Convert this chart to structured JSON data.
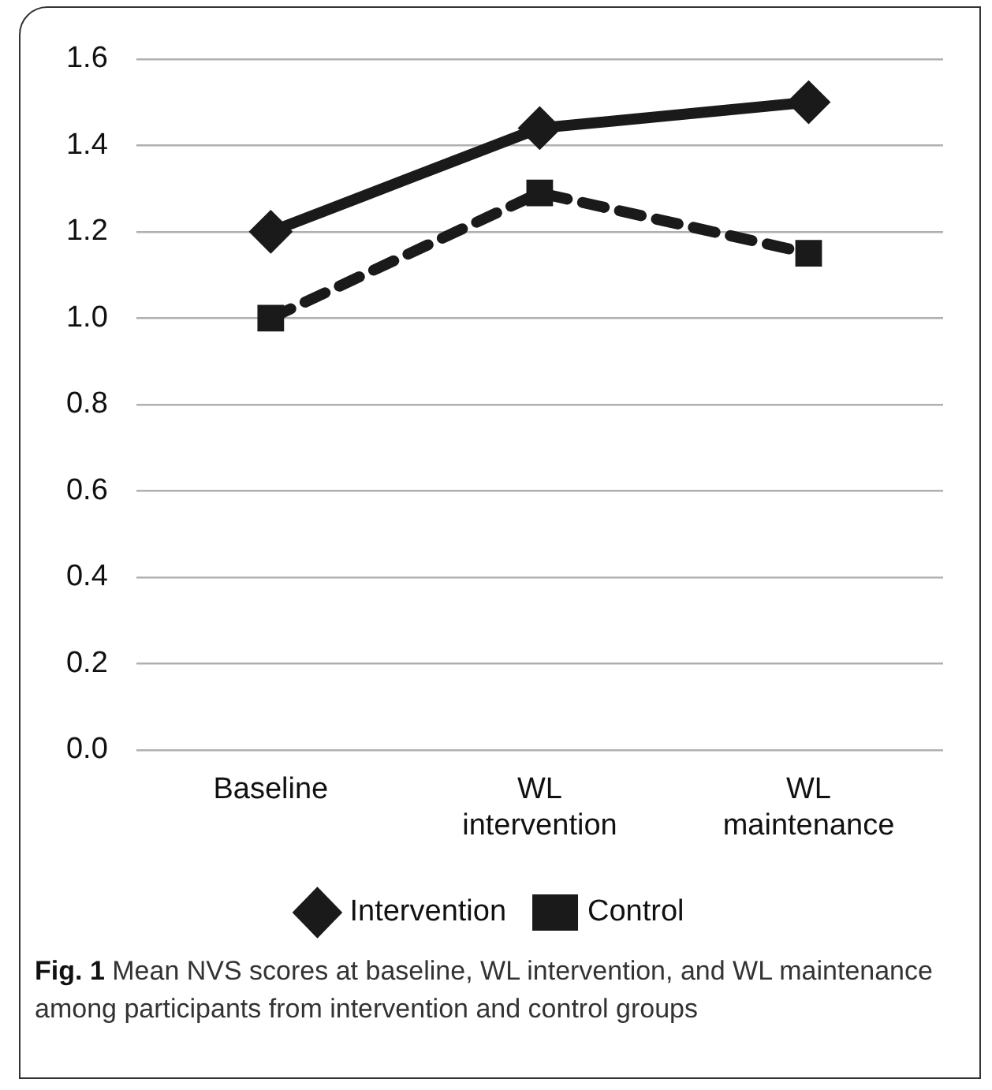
{
  "chart_data": {
    "type": "line",
    "categories": [
      "Baseline",
      "WL intervention",
      "WL maintenance"
    ],
    "series": [
      {
        "name": "Intervention",
        "color": "#1a1a1a",
        "values": [
          1.2,
          1.44,
          1.5
        ],
        "marker": "diamond",
        "line_style": "solid"
      },
      {
        "name": "Control",
        "color": "#1a1a1a",
        "values": [
          1.0,
          1.29,
          1.15
        ],
        "marker": "square",
        "line_style": "dashed"
      }
    ],
    "ylim": [
      0,
      1.6
    ],
    "yticks": [
      {
        "value": 0,
        "label": "0.0"
      },
      0.2,
      0.4,
      0.6,
      0.8,
      {
        "value": 1,
        "label": "1.0"
      },
      1.2,
      1.4,
      1.6
    ],
    "grid": "y",
    "legend": "bottom",
    "annotations": [
      "Fig. 1",
      "Mean NVS scores at baseline, WL intervention, and WL maintenance among participants from intervention and control groups"
    ]
  }
}
